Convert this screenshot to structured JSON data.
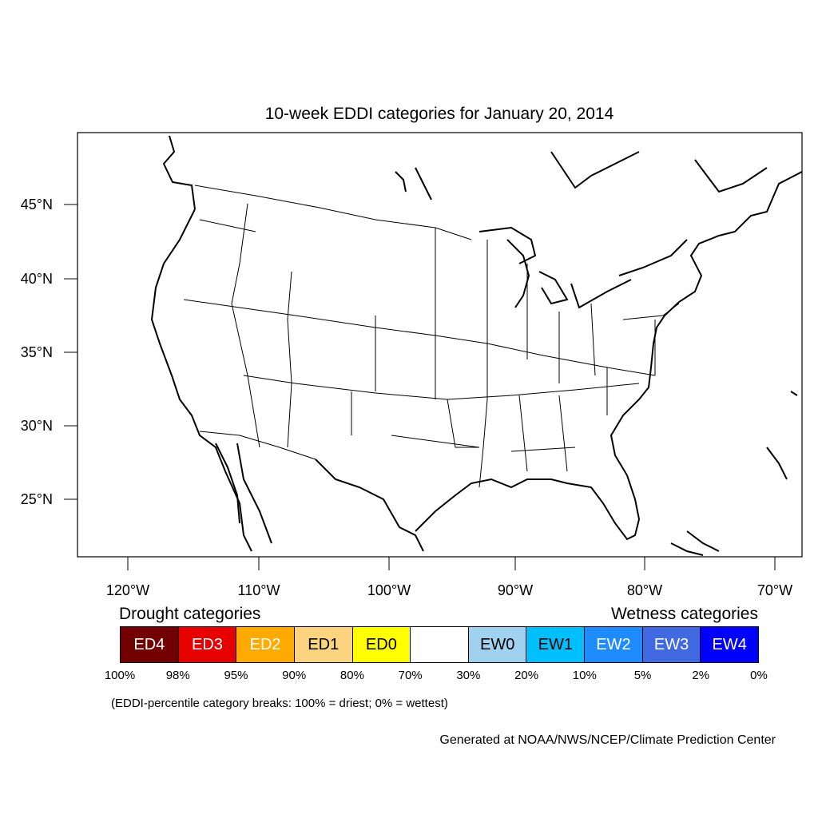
{
  "title": "10-week EDDI categories for January 20, 2014",
  "map": {
    "lat_ticks": [
      "45°N",
      "40°N",
      "35°N",
      "30°N",
      "25°N"
    ],
    "lon_ticks": [
      "120°W",
      "110°W",
      "100°W",
      "90°W",
      "80°W",
      "70°W"
    ]
  },
  "legend": {
    "drought_heading": "Drought categories",
    "wetness_heading": "Wetness categories",
    "boxes": [
      {
        "label": "ED4",
        "color": "#730000",
        "text_color": "#ffffff"
      },
      {
        "label": "ED3",
        "color": "#e60000",
        "text_color": "#ffffff"
      },
      {
        "label": "ED2",
        "color": "#ffaa00",
        "text_color": "#ffffff"
      },
      {
        "label": "ED1",
        "color": "#fcd37f",
        "text_color": "#000000"
      },
      {
        "label": "ED0",
        "color": "#ffff00",
        "text_color": "#000000"
      },
      {
        "label": "",
        "color": "#ffffff",
        "text_color": "#000000"
      },
      {
        "label": "EW0",
        "color": "#a0d2f0",
        "text_color": "#000000"
      },
      {
        "label": "EW1",
        "color": "#00bfff",
        "text_color": "#000000"
      },
      {
        "label": "EW2",
        "color": "#1e8cff",
        "text_color": "#ffffff"
      },
      {
        "label": "EW3",
        "color": "#4169e1",
        "text_color": "#ffffff"
      },
      {
        "label": "EW4",
        "color": "#0000ff",
        "text_color": "#ffffff"
      }
    ],
    "breaks": [
      "100%",
      "98%",
      "95%",
      "90%",
      "80%",
      "70%",
      "30%",
      "20%",
      "10%",
      "5%",
      "2%",
      "0%"
    ]
  },
  "note": "(EDDI-percentile category breaks: 100% = driest; 0% = wettest)",
  "credit": "Generated at NOAA/NWS/NCEP/Climate Prediction Center"
}
